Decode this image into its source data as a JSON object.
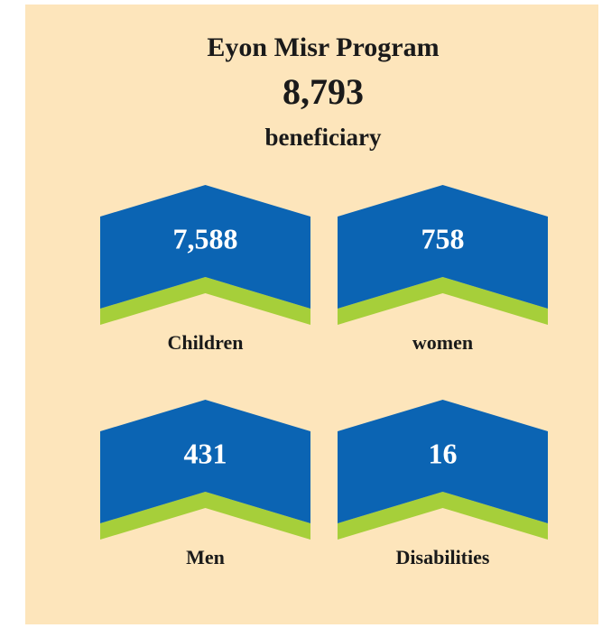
{
  "title": "Eyon Misr Program",
  "total": "8,793",
  "total_label": "beneficiary",
  "items": [
    {
      "value": "7,588",
      "label": "Children"
    },
    {
      "value": "758",
      "label": "women"
    },
    {
      "value": "431",
      "label": "Men"
    },
    {
      "value": "16",
      "label": "Disabilities"
    }
  ]
}
